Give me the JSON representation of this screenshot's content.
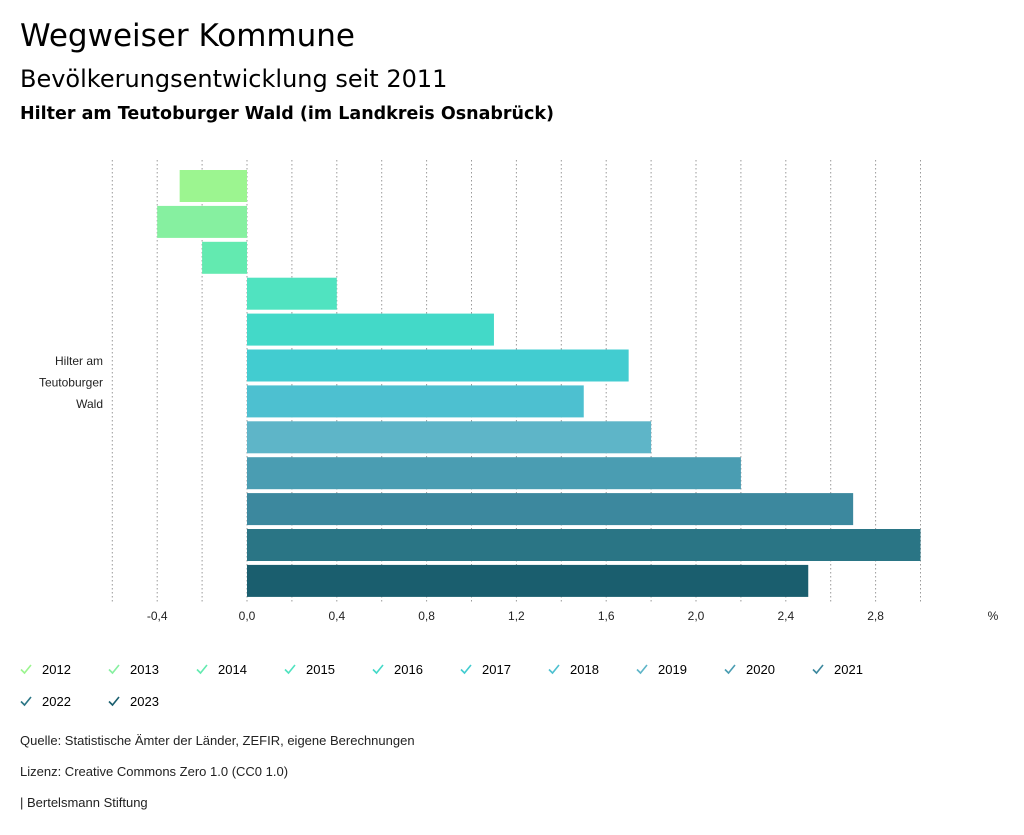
{
  "header": {
    "title": "Wegweiser Kommune",
    "subtitle": "Bevölkerungsentwicklung seit 2011",
    "region": "Hilter am Teutoburger Wald (im Landkreis Osnabrück)"
  },
  "chart_data": {
    "type": "bar",
    "orientation": "horizontal",
    "category": [
      "Hilter am",
      "Teutoburger",
      "Wald"
    ],
    "unit": "%",
    "xlim": [
      -0.6,
      3.0
    ],
    "xticks": [
      "-0,4",
      "0,0",
      "0,4",
      "0,8",
      "1,2",
      "1,6",
      "2,0",
      "2,4",
      "2,8"
    ],
    "xtick_values": [
      -0.4,
      0.0,
      0.4,
      0.8,
      1.2,
      1.6,
      2.0,
      2.4,
      2.8
    ],
    "grid": true,
    "series": [
      {
        "name": "2012",
        "value": -0.3,
        "color": "#9cf590"
      },
      {
        "name": "2013",
        "value": -0.4,
        "color": "#86f0a0"
      },
      {
        "name": "2014",
        "value": -0.2,
        "color": "#63eab0"
      },
      {
        "name": "2015",
        "value": 0.4,
        "color": "#50e3c0"
      },
      {
        "name": "2016",
        "value": 1.1,
        "color": "#43d9c8"
      },
      {
        "name": "2017",
        "value": 1.7,
        "color": "#42ccd0"
      },
      {
        "name": "2018",
        "value": 1.5,
        "color": "#4dc0d0"
      },
      {
        "name": "2019",
        "value": 1.8,
        "color": "#5eb5c8"
      },
      {
        "name": "2020",
        "value": 2.2,
        "color": "#4a9db2"
      },
      {
        "name": "2021",
        "value": 2.7,
        "color": "#3c889e"
      },
      {
        "name": "2022",
        "value": 3.0,
        "color": "#2a7585"
      },
      {
        "name": "2023",
        "value": 2.5,
        "color": "#1a5e6e"
      }
    ]
  },
  "footer": {
    "source": "Quelle: Statistische Ämter der Länder, ZEFIR, eigene Berechnungen",
    "license": "Lizenz: Creative Commons Zero 1.0 (CC0 1.0)",
    "publisher": "| Bertelsmann Stiftung"
  }
}
